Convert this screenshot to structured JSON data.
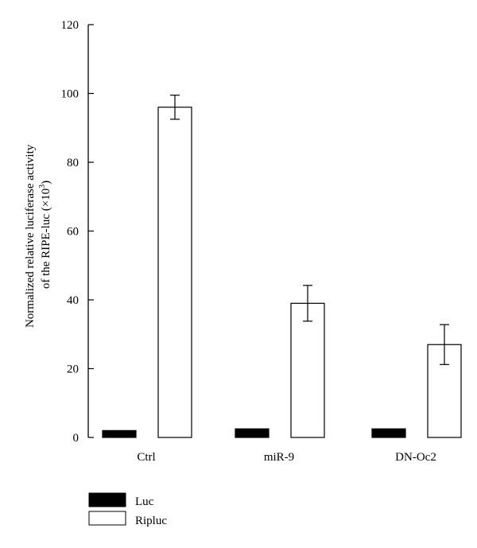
{
  "chart_data": {
    "type": "bar",
    "categories": [
      "Ctrl",
      "miR-9",
      "DN-Oc2"
    ],
    "series": [
      {
        "name": "Luc",
        "values": [
          2.0,
          2.5,
          2.5
        ],
        "errors": [
          null,
          null,
          null
        ],
        "color": "#000000",
        "fill": "#000000"
      },
      {
        "name": "Ripluc",
        "values": [
          96,
          39,
          27
        ],
        "errors": [
          3.5,
          5.2,
          5.8
        ],
        "color": "#000000",
        "fill": "#ffffff"
      }
    ],
    "ylim": [
      0,
      120
    ],
    "yticks": [
      0,
      20,
      40,
      60,
      80,
      100,
      120
    ],
    "ylabel_line1": "Normalized relative luciferase activity",
    "ylabel_line2_pre": "of the RIPE-luc (×10",
    "ylabel_line2_sup": "3",
    "ylabel_line2_post": ")",
    "xlabel": "",
    "title": "",
    "grid": false,
    "legend_position": "bottom-left"
  }
}
